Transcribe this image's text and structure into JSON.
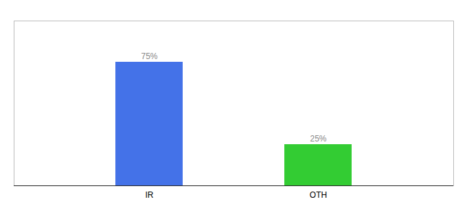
{
  "chart_data": {
    "type": "bar",
    "categories": [
      "IR",
      "OTH"
    ],
    "values": [
      75,
      25
    ],
    "colors": [
      "#4472e8",
      "#33cc33"
    ],
    "value_labels": [
      "75%",
      "25%"
    ],
    "data_labels": true,
    "ylim": [
      0,
      100
    ],
    "tick_labels": "x"
  }
}
